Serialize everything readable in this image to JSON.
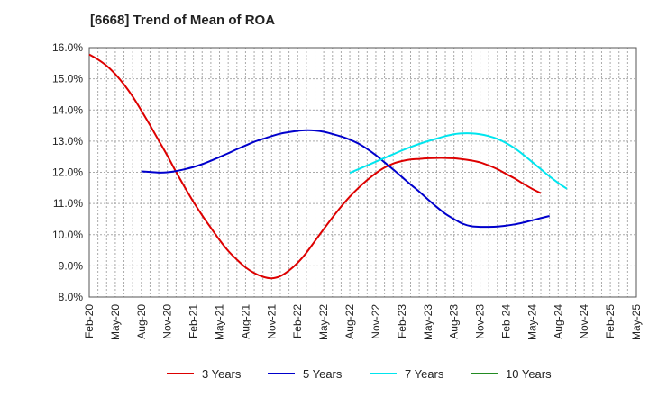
{
  "chart_data": {
    "type": "line",
    "title": "[6668]  Trend of Mean of ROA",
    "xlabel": "",
    "ylabel": "",
    "x_ticks": [
      "Feb-20",
      "May-20",
      "Aug-20",
      "Nov-20",
      "Feb-21",
      "May-21",
      "Aug-21",
      "Nov-21",
      "Feb-22",
      "May-22",
      "Aug-22",
      "Nov-22",
      "Feb-23",
      "May-23",
      "Aug-23",
      "Nov-23",
      "Feb-24",
      "May-24",
      "Aug-24",
      "Nov-24",
      "Feb-25",
      "May-25"
    ],
    "y_ticks": [
      "8.0%",
      "9.0%",
      "10.0%",
      "11.0%",
      "12.0%",
      "13.0%",
      "14.0%",
      "15.0%",
      "16.0%"
    ],
    "ylim": [
      8.0,
      16.0
    ],
    "grid": true,
    "legend_position": "bottom",
    "series": [
      {
        "name": "3 Years",
        "color": "#dd0000",
        "start": "Feb-20",
        "values": [
          15.78,
          15.62,
          15.42,
          15.15,
          14.82,
          14.43,
          13.98,
          13.51,
          13.02,
          12.53,
          12.01,
          11.52,
          11.05,
          10.62,
          10.22,
          9.83,
          9.48,
          9.2,
          8.95,
          8.77,
          8.65,
          8.6,
          8.67,
          8.85,
          9.1,
          9.42,
          9.8,
          10.18,
          10.55,
          10.9,
          11.22,
          11.5,
          11.75,
          11.97,
          12.15,
          12.28,
          12.36,
          12.41,
          12.43,
          12.45,
          12.46,
          12.46,
          12.45,
          12.42,
          12.38,
          12.32,
          12.22,
          12.1,
          11.95,
          11.8,
          11.63,
          11.47,
          11.33
        ]
      },
      {
        "name": "5 Years",
        "color": "#0000cc",
        "start": "Aug-20",
        "values": [
          12.03,
          12.01,
          11.99,
          12.0,
          12.04,
          12.1,
          12.17,
          12.26,
          12.37,
          12.49,
          12.61,
          12.74,
          12.86,
          12.98,
          13.07,
          13.16,
          13.24,
          13.29,
          13.33,
          13.35,
          13.34,
          13.3,
          13.23,
          13.15,
          13.05,
          12.92,
          12.75,
          12.55,
          12.32,
          12.09,
          11.85,
          11.61,
          11.38,
          11.13,
          10.89,
          10.67,
          10.5,
          10.35,
          10.27,
          10.25,
          10.25,
          10.26,
          10.29,
          10.33,
          10.39,
          10.46,
          10.53,
          10.6
        ]
      },
      {
        "name": "7 Years",
        "color": "#00e5ee",
        "start": "Aug-22",
        "values": [
          11.98,
          12.1,
          12.22,
          12.34,
          12.46,
          12.58,
          12.7,
          12.81,
          12.91,
          13.0,
          13.08,
          13.16,
          13.22,
          13.25,
          13.25,
          13.22,
          13.16,
          13.07,
          12.94,
          12.77,
          12.56,
          12.33,
          12.1,
          11.87,
          11.66,
          11.47
        ]
      },
      {
        "name": "10 Years",
        "color": "#228b22",
        "start": "Aug-22",
        "values": []
      }
    ]
  }
}
